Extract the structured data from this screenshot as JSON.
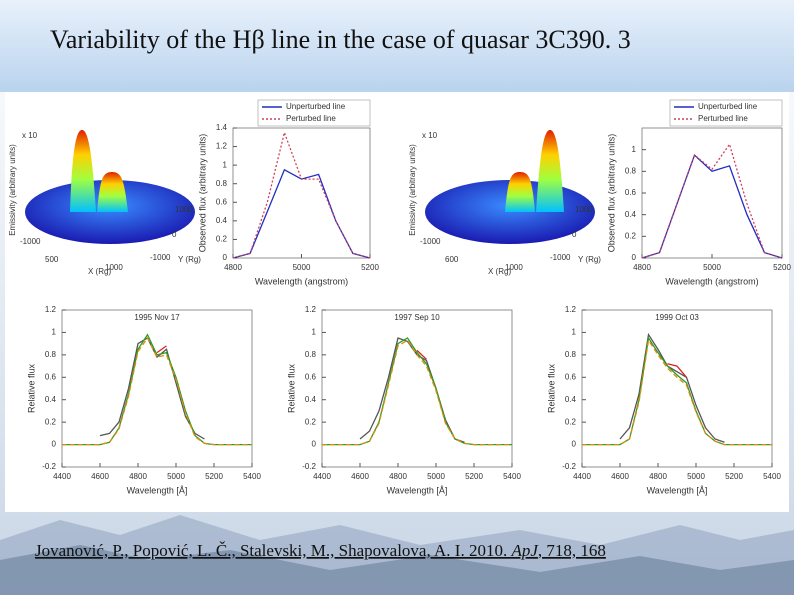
{
  "title": "Variability of the Hβ line in the case of quasar 3C390. 3",
  "citation": {
    "authors": "Jovanović, P., Popović, L. Č., Stalevski, M., Shapovalova, A. I. 2010. ",
    "journal": "ApJ",
    "rest": ", 718, 168"
  },
  "surface_plots": [
    {
      "zlabel": "Emissivity (arbitrary units)",
      "xlabel": "X (Rg)",
      "ylabel": "Y (Rg)",
      "tick_labels": [
        "x 10",
        "-1000",
        "500",
        "1000",
        "1000",
        "0",
        "-1000"
      ]
    },
    {
      "zlabel": "Emissivity (arbitrary units)",
      "xlabel": "X (Rg)",
      "ylabel": "Y (Rg)",
      "tick_labels": [
        "x 10",
        "-1000",
        "600",
        "1000",
        "1000",
        "0",
        "-1000"
      ]
    }
  ],
  "chart_data": [
    {
      "type": "line",
      "xlabel": "Wavelength (angstrom)",
      "ylabel": "Observed flux (arbitrary units)",
      "legend": "upper right",
      "x": [
        4800,
        4850,
        4900,
        4950,
        5000,
        5050,
        5100,
        5150,
        5200
      ],
      "series": [
        {
          "name": "Unperturbed line",
          "color": "#1f2fbf",
          "style": "solid",
          "values": [
            0,
            0.05,
            0.5,
            0.95,
            0.85,
            0.9,
            0.4,
            0.05,
            0
          ]
        },
        {
          "name": "Perturbed line",
          "color": "#d0405a",
          "style": "dotted",
          "values": [
            0,
            0.05,
            0.6,
            1.35,
            0.85,
            0.85,
            0.4,
            0.05,
            0
          ]
        }
      ],
      "xlim": [
        4800,
        5200
      ],
      "ylim": [
        0,
        1.4
      ],
      "xticks": [
        4800,
        5000,
        5200
      ],
      "yticks": [
        0,
        0.2,
        0.4,
        0.6,
        0.8,
        1,
        1.2,
        1.4
      ]
    },
    {
      "type": "line",
      "xlabel": "Wavelength (angstrom)",
      "ylabel": "Observed flux (arbitrary units)",
      "legend": "upper right",
      "x": [
        4800,
        4850,
        4900,
        4950,
        5000,
        5050,
        5100,
        5150,
        5200
      ],
      "series": [
        {
          "name": "Unperturbed line",
          "color": "#1f2fbf",
          "style": "solid",
          "values": [
            0,
            0.05,
            0.5,
            0.95,
            0.8,
            0.85,
            0.4,
            0.05,
            0
          ]
        },
        {
          "name": "Perturbed line",
          "color": "#d0405a",
          "style": "dotted",
          "values": [
            0,
            0.05,
            0.5,
            0.95,
            0.82,
            1.05,
            0.5,
            0.05,
            0
          ]
        }
      ],
      "xlim": [
        4800,
        5200
      ],
      "ylim": [
        0,
        1.2
      ],
      "xticks": [
        4800,
        5000,
        5200
      ],
      "yticks": [
        0,
        0.2,
        0.4,
        0.6,
        0.8,
        1
      ]
    },
    {
      "type": "line",
      "annotation": "1995 Nov 17",
      "xlabel": "Wavelength [Å]",
      "ylabel": "Relative flux",
      "x": [
        4400,
        4450,
        4500,
        4550,
        4600,
        4650,
        4700,
        4750,
        4800,
        4850,
        4900,
        4950,
        5000,
        5050,
        5100,
        5150,
        5200,
        5250,
        5300,
        5350,
        5400
      ],
      "series": [
        {
          "color": "#555555",
          "style": "solid",
          "values": [
            null,
            null,
            null,
            null,
            0.08,
            0.1,
            0.2,
            0.5,
            0.9,
            0.95,
            0.78,
            0.85,
            0.55,
            0.25,
            0.1,
            0.05,
            null,
            null,
            null,
            null,
            null
          ]
        },
        {
          "color": "#2a9d2a",
          "style": "solid",
          "values": [
            0,
            0,
            0,
            0,
            0,
            0.02,
            0.15,
            0.45,
            0.85,
            0.98,
            0.8,
            0.82,
            0.6,
            0.3,
            0.08,
            0.01,
            0,
            0,
            0,
            0,
            0
          ]
        },
        {
          "color": "#e08a00",
          "style": "dashed",
          "values": [
            0,
            0,
            0,
            0,
            0,
            0.02,
            0.14,
            0.43,
            0.83,
            0.95,
            0.78,
            0.8,
            0.58,
            0.28,
            0.07,
            0.01,
            0,
            0,
            0,
            0,
            0
          ]
        },
        {
          "color": "#e02020",
          "style": "solid",
          "values": [
            null,
            null,
            null,
            null,
            null,
            null,
            null,
            null,
            null,
            null,
            0.82,
            0.88,
            null,
            null,
            null,
            null,
            null,
            null,
            null,
            null,
            null
          ]
        }
      ],
      "xlim": [
        4400,
        5400
      ],
      "ylim": [
        -0.2,
        1.2
      ],
      "xticks": [
        4400,
        4600,
        4800,
        5000,
        5200,
        5400
      ],
      "yticks": [
        -0.2,
        0,
        0.2,
        0.4,
        0.6,
        0.8,
        1,
        1.2
      ]
    },
    {
      "type": "line",
      "annotation": "1997 Sep 10",
      "xlabel": "Wavelength [Å]",
      "ylabel": "Relative flux",
      "x": [
        4400,
        4450,
        4500,
        4550,
        4600,
        4650,
        4700,
        4750,
        4800,
        4850,
        4900,
        4950,
        5000,
        5050,
        5100,
        5150,
        5200,
        5250,
        5300,
        5350,
        5400
      ],
      "series": [
        {
          "color": "#555555",
          "style": "solid",
          "values": [
            null,
            null,
            null,
            null,
            0.05,
            0.12,
            0.3,
            0.6,
            0.95,
            0.92,
            0.8,
            0.75,
            0.5,
            0.22,
            0.05,
            0.02,
            null,
            null,
            null,
            null,
            null
          ]
        },
        {
          "color": "#2a9d2a",
          "style": "solid",
          "values": [
            0,
            0,
            0,
            0,
            0,
            0.03,
            0.2,
            0.55,
            0.9,
            0.95,
            0.82,
            0.72,
            0.5,
            0.2,
            0.05,
            0.01,
            0,
            0,
            0,
            0,
            0
          ]
        },
        {
          "color": "#e08a00",
          "style": "dashed",
          "values": [
            0,
            0,
            0,
            0,
            0,
            0.03,
            0.19,
            0.53,
            0.88,
            0.93,
            0.8,
            0.7,
            0.48,
            0.19,
            0.05,
            0.01,
            0,
            0,
            0,
            0,
            0
          ]
        },
        {
          "color": "#e02020",
          "style": "solid",
          "values": [
            null,
            null,
            null,
            null,
            null,
            null,
            null,
            null,
            null,
            null,
            0.84,
            0.76,
            null,
            null,
            null,
            null,
            null,
            null,
            null,
            null,
            null
          ]
        }
      ],
      "xlim": [
        4400,
        5400
      ],
      "ylim": [
        -0.2,
        1.2
      ],
      "xticks": [
        4400,
        4600,
        4800,
        5000,
        5200,
        5400
      ],
      "yticks": [
        -0.2,
        0,
        0.2,
        0.4,
        0.6,
        0.8,
        1,
        1.2
      ]
    },
    {
      "type": "line",
      "annotation": "1999 Oct 03",
      "xlabel": "Wavelength [Å]",
      "ylabel": "Relative flux",
      "x": [
        4400,
        4450,
        4500,
        4550,
        4600,
        4650,
        4700,
        4750,
        4800,
        4850,
        4900,
        4950,
        5000,
        5050,
        5100,
        5150,
        5200,
        5250,
        5300,
        5350,
        5400
      ],
      "series": [
        {
          "color": "#555555",
          "style": "solid",
          "values": [
            null,
            null,
            null,
            null,
            0.05,
            0.15,
            0.45,
            0.98,
            0.85,
            0.7,
            0.65,
            0.6,
            0.35,
            0.15,
            0.05,
            0.02,
            null,
            null,
            null,
            null,
            null
          ]
        },
        {
          "color": "#2a9d2a",
          "style": "solid",
          "values": [
            0,
            0,
            0,
            0,
            0,
            0.05,
            0.4,
            0.95,
            0.82,
            0.7,
            0.62,
            0.55,
            0.3,
            0.1,
            0.03,
            0,
            0,
            0,
            0,
            0,
            0
          ]
        },
        {
          "color": "#e08a00",
          "style": "dashed",
          "values": [
            0,
            0,
            0,
            0,
            0,
            0.05,
            0.38,
            0.93,
            0.8,
            0.68,
            0.6,
            0.53,
            0.29,
            0.1,
            0.03,
            0,
            0,
            0,
            0,
            0,
            0
          ]
        },
        {
          "color": "#e02020",
          "style": "solid",
          "values": [
            null,
            null,
            null,
            null,
            null,
            null,
            null,
            null,
            null,
            0.72,
            0.7,
            0.6,
            null,
            null,
            null,
            null,
            null,
            null,
            null,
            null,
            null
          ]
        }
      ],
      "xlim": [
        4400,
        5400
      ],
      "ylim": [
        -0.2,
        1.2
      ],
      "xticks": [
        4400,
        4600,
        4800,
        5000,
        5200,
        5400
      ],
      "yticks": [
        -0.2,
        0,
        0.2,
        0.4,
        0.6,
        0.8,
        1,
        1.2
      ]
    }
  ]
}
